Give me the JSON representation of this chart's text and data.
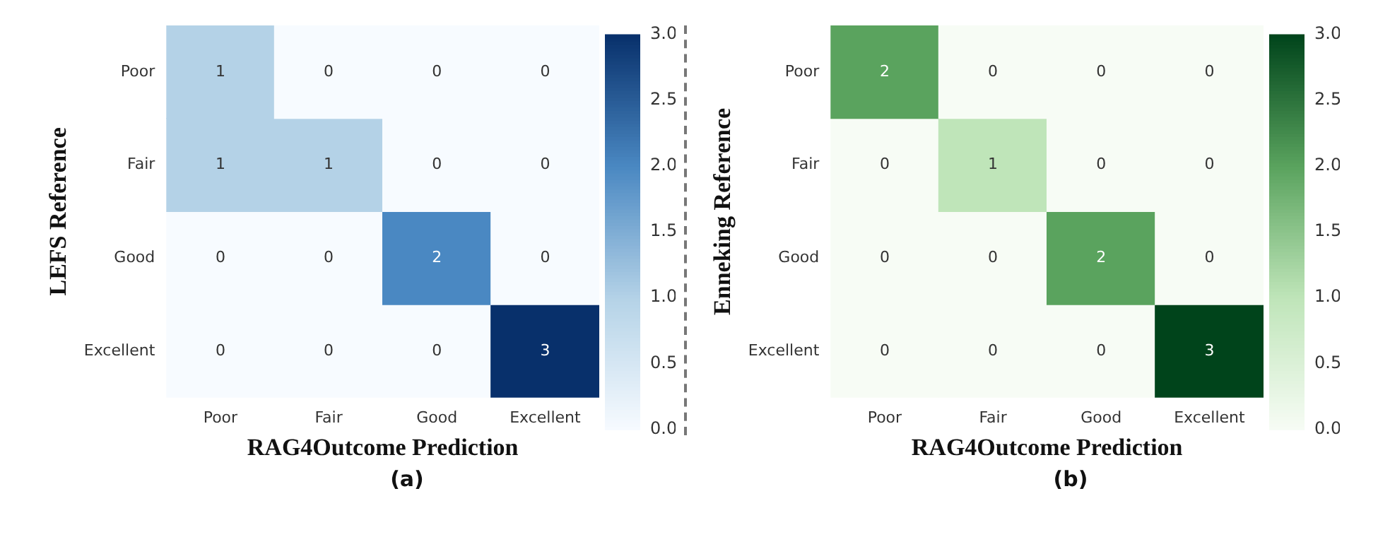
{
  "chart_data": [
    {
      "type": "heatmap",
      "xlabel": "RAG4Outcome Prediction",
      "ylabel": "LEFS Reference",
      "annotations": [
        "(a)"
      ],
      "categories": [
        "Poor",
        "Fair",
        "Good",
        "Excellent"
      ],
      "y_categories": [
        "Poor",
        "Fair",
        "Good",
        "Excellent"
      ],
      "cells": [
        [
          1,
          0,
          0,
          0
        ],
        [
          1,
          1,
          0,
          0
        ],
        [
          0,
          0,
          2,
          0
        ],
        [
          0,
          0,
          0,
          3
        ]
      ],
      "clim": [
        0,
        3
      ],
      "cticks": [
        {
          "value": 0,
          "label": "0.0"
        },
        {
          "value": 0.5,
          "label": "0.5"
        },
        {
          "value": 1,
          "label": "1.0"
        },
        {
          "value": 1.5,
          "label": "1.5"
        },
        {
          "value": 2,
          "label": "2.0"
        },
        {
          "value": 2.5,
          "label": "2.5"
        },
        {
          "value": 3,
          "label": "3.0"
        }
      ],
      "data_labels": true
    },
    {
      "type": "heatmap",
      "xlabel": "RAG4Outcome Prediction",
      "ylabel": "Enneking Reference",
      "annotations": [
        "(b)"
      ],
      "categories": [
        "Poor",
        "Fair",
        "Good",
        "Excellent"
      ],
      "y_categories": [
        "Poor",
        "Fair",
        "Good",
        "Excellent"
      ],
      "cells": [
        [
          2,
          0,
          0,
          0
        ],
        [
          0,
          1,
          0,
          0
        ],
        [
          0,
          0,
          2,
          0
        ],
        [
          0,
          0,
          0,
          3
        ]
      ],
      "clim": [
        0,
        3
      ],
      "cticks": [
        {
          "value": 0,
          "label": "0.0"
        },
        {
          "value": 0.5,
          "label": "0.5"
        },
        {
          "value": 1,
          "label": "1.0"
        },
        {
          "value": 1.5,
          "label": "1.5"
        },
        {
          "value": 2,
          "label": "2.0"
        },
        {
          "value": 2.5,
          "label": "2.5"
        },
        {
          "value": 3,
          "label": "3.0"
        }
      ],
      "data_labels": true
    }
  ]
}
